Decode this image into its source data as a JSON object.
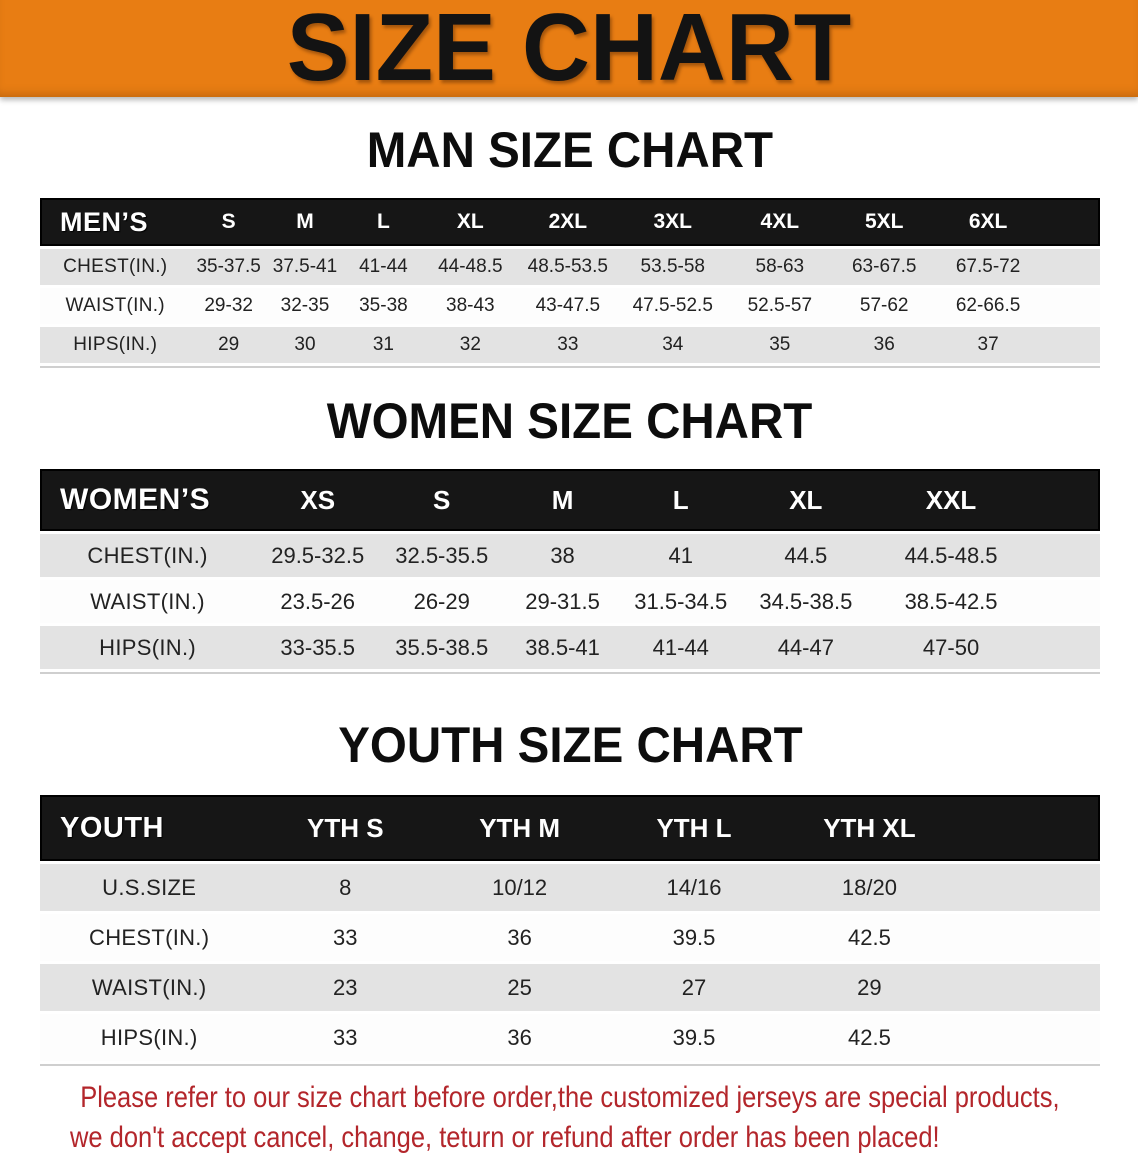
{
  "banner": {
    "title": "SIZE CHART",
    "bg_color": "#e87d13",
    "text_color": "#131313"
  },
  "sections": [
    {
      "heading": "MAN SIZE CHART",
      "header_label": "MEN’S",
      "columns": [
        "S",
        "M",
        "L",
        "XL",
        "2XL",
        "3XL",
        "4XL",
        "5XL",
        "6XL"
      ],
      "rows": [
        {
          "label": "CHEST(IN.)",
          "values": [
            "35-37.5",
            "37.5-41",
            "41-44",
            "44-48.5",
            "48.5-53.5",
            "53.5-58",
            "58-63",
            "63-67.5",
            "67.5-72"
          ]
        },
        {
          "label": "WAIST(IN.)",
          "values": [
            "29-32",
            "32-35",
            "35-38",
            "38-43",
            "43-47.5",
            "47.5-52.5",
            "52.5-57",
            "57-62",
            "62-66.5"
          ]
        },
        {
          "label": "HIPS(IN.)",
          "values": [
            "29",
            "30",
            "31",
            "32",
            "33",
            "34",
            "35",
            "36",
            "37"
          ]
        }
      ]
    },
    {
      "heading": "WOMEN SIZE CHART",
      "header_label": "WOMEN’S",
      "columns": [
        "XS",
        "S",
        "M",
        "L",
        "XL",
        "XXL"
      ],
      "rows": [
        {
          "label": "CHEST(IN.)",
          "values": [
            "29.5-32.5",
            "32.5-35.5",
            "38",
            "41",
            "44.5",
            "44.5-48.5"
          ]
        },
        {
          "label": "WAIST(IN.)",
          "values": [
            "23.5-26",
            "26-29",
            "29-31.5",
            "31.5-34.5",
            "34.5-38.5",
            "38.5-42.5"
          ]
        },
        {
          "label": "HIPS(IN.)",
          "values": [
            "33-35.5",
            "35.5-38.5",
            "38.5-41",
            "41-44",
            "44-47",
            "47-50"
          ]
        }
      ]
    },
    {
      "heading": "YOUTH SIZE CHART",
      "header_label": "YOUTH",
      "columns": [
        "YTH S",
        "YTH M",
        "YTH L",
        "YTH XL"
      ],
      "rows": [
        {
          "label": "U.S.SIZE",
          "values": [
            "8",
            "10/12",
            "14/16",
            "18/20"
          ]
        },
        {
          "label": "CHEST(IN.)",
          "values": [
            "33",
            "36",
            "39.5",
            "42.5"
          ]
        },
        {
          "label": "WAIST(IN.)",
          "values": [
            "23",
            "25",
            "27",
            "29"
          ]
        },
        {
          "label": "HIPS(IN.)",
          "values": [
            "33",
            "36",
            "39.5",
            "42.5"
          ]
        }
      ]
    }
  ],
  "disclaimer": {
    "line1": "Please refer to our size chart before order,the customized jerseys are special products,",
    "line2": "we don't accept cancel, change, teturn or refund after order has been placed!",
    "color": "#b3262b"
  },
  "colors": {
    "banner_bg": "#e87d13",
    "table_header_bar": "#161616",
    "stripe_row": "#e3e3e3",
    "disclaimer_text": "#b3262b"
  }
}
